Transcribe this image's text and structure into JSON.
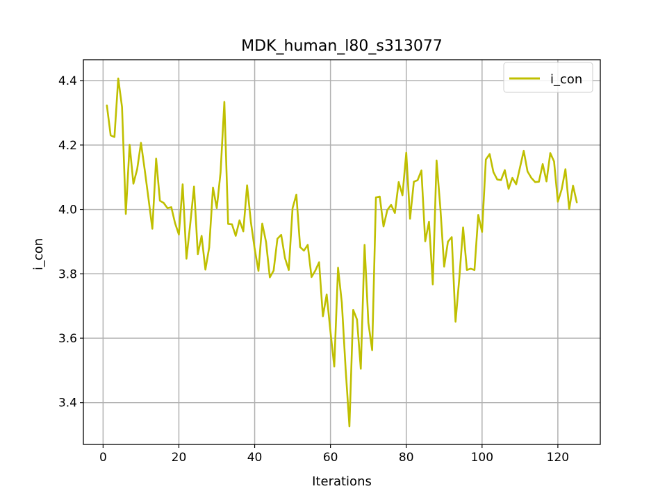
{
  "chart_data": {
    "type": "line",
    "title": "MDK_human_l80_s313077",
    "xlabel": "Iterations",
    "ylabel": "i_con",
    "xlim": [
      -5.2,
      131.2
    ],
    "ylim": [
      3.27,
      4.465
    ],
    "xticks": [
      0,
      20,
      40,
      60,
      80,
      100,
      120
    ],
    "yticks": [
      3.4,
      3.6,
      3.8,
      4.0,
      4.2,
      4.4
    ],
    "xtick_labels": [
      "0",
      "20",
      "40",
      "60",
      "80",
      "100",
      "120"
    ],
    "ytick_labels": [
      "3.4",
      "3.6",
      "3.8",
      "4.0",
      "4.2",
      "4.4"
    ],
    "grid": true,
    "legend_position": "top-right",
    "series": [
      {
        "name": "i_con",
        "color": "#bfbf00",
        "x": [
          1,
          2,
          3,
          4,
          5,
          6,
          7,
          8,
          9,
          10,
          11,
          12,
          13,
          14,
          15,
          16,
          17,
          18,
          19,
          20,
          21,
          22,
          23,
          24,
          25,
          26,
          27,
          28,
          29,
          30,
          31,
          32,
          33,
          34,
          35,
          36,
          37,
          38,
          39,
          40,
          41,
          42,
          43,
          44,
          45,
          46,
          47,
          48,
          49,
          50,
          51,
          52,
          53,
          54,
          55,
          56,
          57,
          58,
          59,
          60,
          61,
          62,
          63,
          64,
          65,
          66,
          67,
          68,
          69,
          70,
          71,
          72,
          73,
          74,
          75,
          76,
          77,
          78,
          79,
          80,
          81,
          82,
          83,
          84,
          85,
          86,
          87,
          88,
          89,
          90,
          91,
          92,
          93,
          94,
          95,
          96,
          97,
          98,
          99,
          100,
          101,
          102,
          103,
          104,
          105,
          106,
          107,
          108,
          109,
          110,
          111,
          112,
          113,
          114,
          115,
          116,
          117,
          118,
          119,
          120,
          121,
          122,
          123,
          124,
          125
        ],
        "y": [
          4.323,
          4.23,
          4.225,
          4.407,
          4.318,
          3.986,
          4.201,
          4.08,
          4.125,
          4.207,
          4.122,
          4.032,
          3.94,
          4.158,
          4.027,
          4.02,
          4.004,
          4.007,
          3.957,
          3.922,
          4.078,
          3.847,
          3.955,
          4.071,
          3.861,
          3.918,
          3.813,
          3.882,
          4.068,
          4.004,
          4.115,
          4.334,
          3.955,
          3.954,
          3.918,
          3.966,
          3.932,
          4.075,
          3.961,
          3.878,
          3.809,
          3.956,
          3.899,
          3.789,
          3.81,
          3.909,
          3.921,
          3.849,
          3.812,
          4.004,
          4.046,
          3.883,
          3.872,
          3.89,
          3.79,
          3.81,
          3.836,
          3.668,
          3.736,
          3.62,
          3.512,
          3.819,
          3.71,
          3.505,
          3.326,
          3.688,
          3.658,
          3.505,
          3.89,
          3.648,
          3.563,
          4.037,
          4.04,
          3.947,
          3.998,
          4.014,
          3.989,
          4.085,
          4.044,
          4.176,
          3.971,
          4.086,
          4.091,
          4.121,
          3.901,
          3.962,
          3.767,
          4.152,
          4.004,
          3.822,
          3.9,
          3.914,
          3.651,
          3.787,
          3.944,
          3.812,
          3.816,
          3.812,
          3.983,
          3.93,
          4.155,
          4.172,
          4.116,
          4.093,
          4.091,
          4.122,
          4.064,
          4.098,
          4.078,
          4.13,
          4.182,
          4.118,
          4.098,
          4.085,
          4.086,
          4.141,
          4.087,
          4.175,
          4.149,
          4.024,
          4.062,
          4.125,
          4.001,
          4.074,
          4.022
        ]
      }
    ]
  }
}
